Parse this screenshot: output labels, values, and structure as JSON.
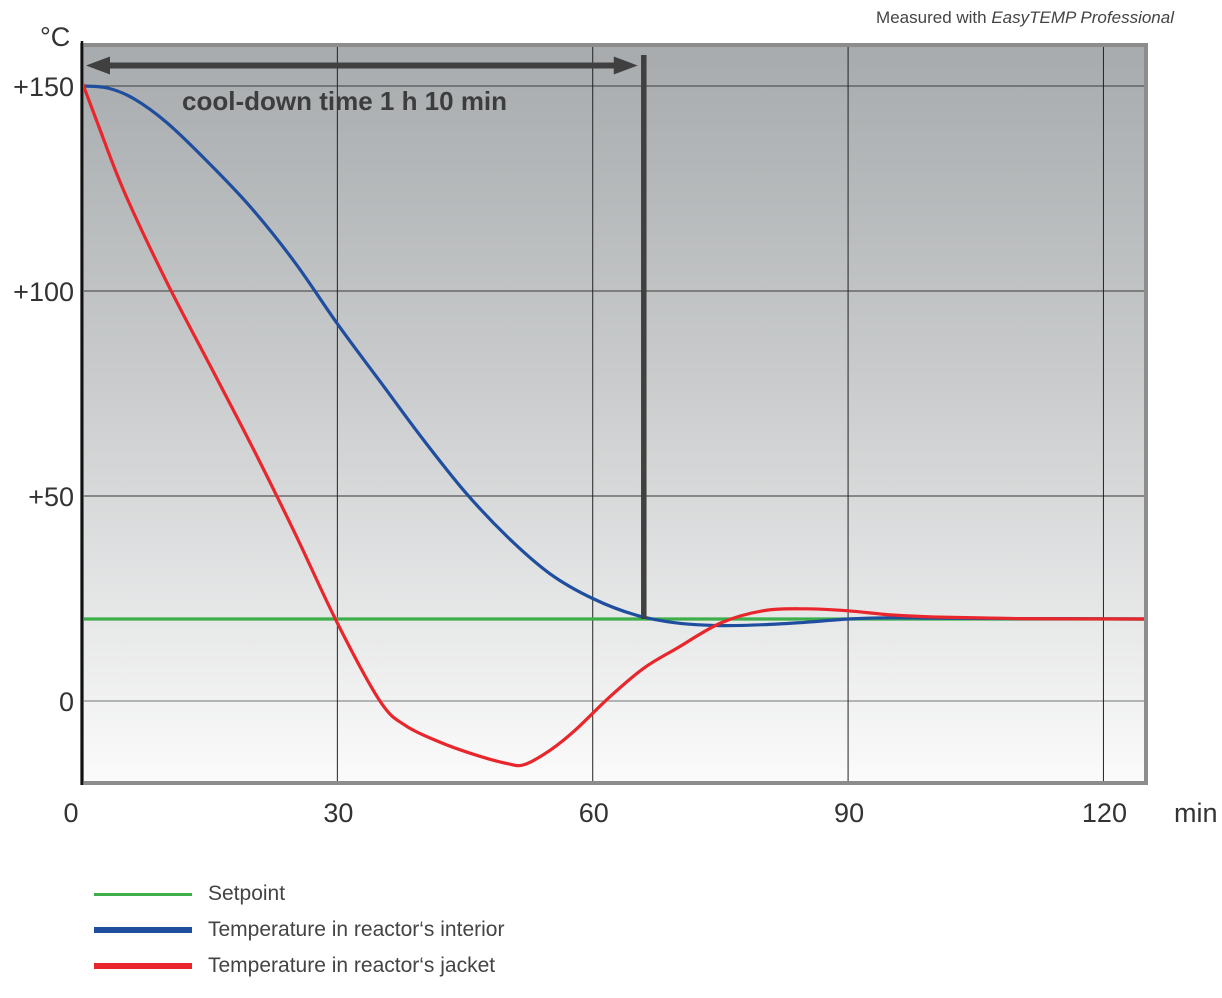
{
  "note": {
    "prefix": "Measured with ",
    "product": "EasyTEMP Professional"
  },
  "chart_data": {
    "type": "line",
    "y_unit": "°C",
    "x_unit": "min",
    "xlim": [
      0,
      125
    ],
    "ylim": [
      -20,
      160
    ],
    "x_ticks": [
      0,
      30,
      60,
      90,
      120
    ],
    "x_tick_labels": [
      "0",
      "30",
      "60",
      "90",
      "120"
    ],
    "y_ticks": [
      150,
      100,
      50,
      0
    ],
    "y_tick_labels": [
      "+150",
      "+100",
      "+50",
      "0"
    ],
    "grid": true,
    "background": "vertical gradient, dark grey at top to white at bottom",
    "annotation": {
      "text": "cool-down time 1 h 10 min",
      "x_start": 0,
      "x_end": 66,
      "y_arrow": 155,
      "marker_x": 66
    },
    "series": [
      {
        "name": "Setpoint",
        "color": "#3dae49",
        "x": [
          0,
          125
        ],
        "y": [
          20,
          20
        ]
      },
      {
        "name": "Temperature in reactor‘s interior",
        "color": "#1f4e9e",
        "x": [
          0,
          3,
          6,
          10,
          15,
          20,
          25,
          30,
          35,
          40,
          45,
          50,
          55,
          60,
          65,
          70,
          75,
          80,
          85,
          90,
          95,
          100,
          110,
          125
        ],
        "y": [
          150,
          149.5,
          147,
          141,
          131,
          120,
          107,
          92,
          78,
          64,
          51,
          40,
          31,
          25,
          21,
          19,
          18.4,
          18.6,
          19.2,
          20,
          20.3,
          20.2,
          20.1,
          20
        ]
      },
      {
        "name": "Temperature in reactor‘s jacket",
        "color": "#e8262c",
        "x": [
          0,
          2,
          5,
          10,
          15,
          20,
          25,
          30,
          35,
          38,
          42,
          46,
          50,
          52,
          55,
          58,
          62,
          66,
          70,
          75,
          80,
          85,
          90,
          95,
          100,
          110,
          125
        ],
        "y": [
          151,
          140,
          124,
          102,
          82,
          62,
          41,
          19,
          0,
          -6,
          -10,
          -13,
          -15.3,
          -15.5,
          -12,
          -7,
          1,
          8,
          13,
          19,
          22,
          22.5,
          22,
          21,
          20.5,
          20.1,
          20
        ]
      }
    ]
  },
  "legend": [
    {
      "label": "Setpoint",
      "color": "#3dae49",
      "thickness": 3
    },
    {
      "label": "Temperature in reactor‘s interior",
      "color": "#1f4e9e",
      "thickness": 6
    },
    {
      "label": "Temperature in reactor‘s jacket",
      "color": "#e8262c",
      "thickness": 6
    }
  ]
}
